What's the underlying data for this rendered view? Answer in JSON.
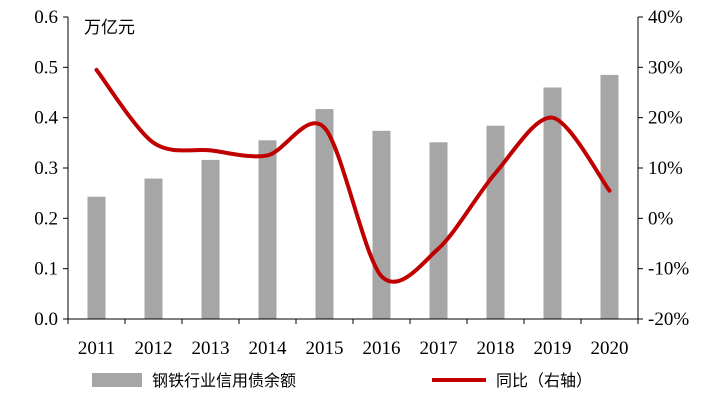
{
  "chart_data": {
    "type": "bar+line",
    "categories": [
      "2011",
      "2012",
      "2013",
      "2014",
      "2015",
      "2016",
      "2017",
      "2018",
      "2019",
      "2020"
    ],
    "series": [
      {
        "name": "钢铁行业信用债余额",
        "type": "bar",
        "axis": "left",
        "color": "#a6a6a6",
        "values": [
          0.243,
          0.279,
          0.316,
          0.355,
          0.417,
          0.374,
          0.351,
          0.384,
          0.46,
          0.485
        ]
      },
      {
        "name": "同比（右轴）",
        "type": "line",
        "axis": "right",
        "color": "#c00000",
        "values": [
          29.5,
          15.0,
          13.5,
          12.5,
          18.0,
          -11.5,
          -6.0,
          9.0,
          20.0,
          5.5
        ]
      }
    ],
    "left_axis": {
      "unit_label": "万亿元",
      "ylim": [
        0,
        0.6
      ],
      "ticks": [
        0.0,
        0.1,
        0.2,
        0.3,
        0.4,
        0.5,
        0.6
      ],
      "tick_labels": [
        "0.0",
        "0.1",
        "0.2",
        "0.3",
        "0.4",
        "0.5",
        "0.6"
      ]
    },
    "right_axis": {
      "ylim": [
        -20,
        40
      ],
      "ticks": [
        -20,
        -10,
        0,
        10,
        20,
        30,
        40
      ],
      "tick_labels": [
        "-20%",
        "-10%",
        "0%",
        "10%",
        "20%",
        "30%",
        "40%"
      ]
    },
    "grid": false,
    "legend_position": "bottom"
  }
}
